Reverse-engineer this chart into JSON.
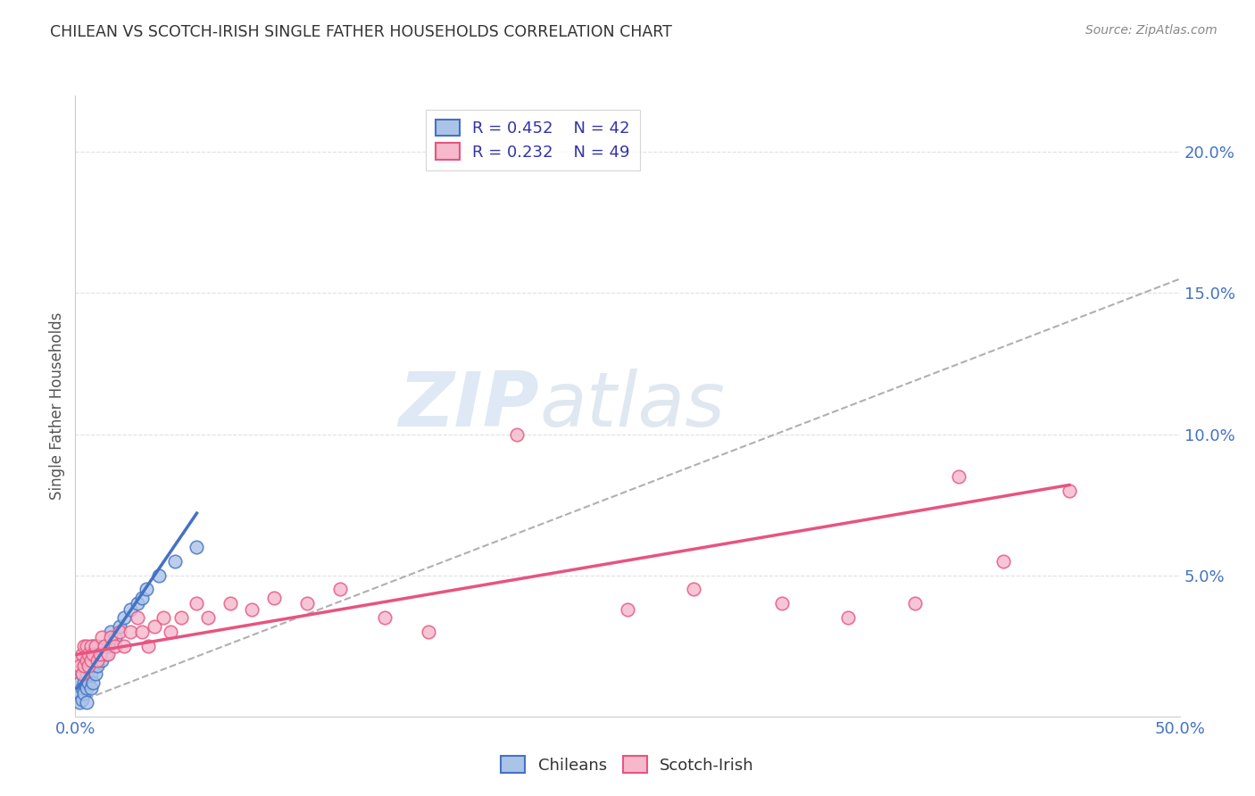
{
  "title": "CHILEAN VS SCOTCH-IRISH SINGLE FATHER HOUSEHOLDS CORRELATION CHART",
  "source": "Source: ZipAtlas.com",
  "ylabel": "Single Father Households",
  "ytick_labels": [
    "5.0%",
    "10.0%",
    "15.0%",
    "20.0%"
  ],
  "ytick_values": [
    0.05,
    0.1,
    0.15,
    0.2
  ],
  "xlim": [
    0.0,
    0.5
  ],
  "ylim": [
    0.0,
    0.22
  ],
  "legend_r1": "R = 0.452",
  "legend_n1": "N = 42",
  "legend_r2": "R = 0.232",
  "legend_n2": "N = 49",
  "color_chilean_face": "#aac4e8",
  "color_scotch_face": "#f5b8cc",
  "color_line_chilean": "#4472c4",
  "color_line_scotch": "#e75480",
  "color_trendline_dashed": "#b0b0b0",
  "watermark_zip": "ZIP",
  "watermark_atlas": "atlas",
  "chilean_x": [
    0.001,
    0.002,
    0.002,
    0.003,
    0.003,
    0.003,
    0.004,
    0.004,
    0.004,
    0.005,
    0.005,
    0.005,
    0.005,
    0.006,
    0.006,
    0.006,
    0.007,
    0.007,
    0.007,
    0.008,
    0.008,
    0.008,
    0.009,
    0.009,
    0.01,
    0.01,
    0.011,
    0.012,
    0.013,
    0.014,
    0.015,
    0.016,
    0.018,
    0.02,
    0.022,
    0.025,
    0.028,
    0.03,
    0.032,
    0.038,
    0.045,
    0.055
  ],
  "chilean_y": [
    0.008,
    0.005,
    0.012,
    0.006,
    0.01,
    0.015,
    0.008,
    0.012,
    0.018,
    0.01,
    0.015,
    0.02,
    0.005,
    0.012,
    0.018,
    0.022,
    0.01,
    0.015,
    0.02,
    0.012,
    0.018,
    0.025,
    0.015,
    0.02,
    0.018,
    0.025,
    0.022,
    0.02,
    0.025,
    0.022,
    0.025,
    0.03,
    0.028,
    0.032,
    0.035,
    0.038,
    0.04,
    0.042,
    0.045,
    0.05,
    0.055,
    0.06
  ],
  "scotch_x": [
    0.001,
    0.002,
    0.003,
    0.003,
    0.004,
    0.004,
    0.005,
    0.005,
    0.006,
    0.006,
    0.007,
    0.007,
    0.008,
    0.009,
    0.01,
    0.011,
    0.012,
    0.013,
    0.015,
    0.016,
    0.018,
    0.02,
    0.022,
    0.025,
    0.028,
    0.03,
    0.033,
    0.036,
    0.04,
    0.043,
    0.048,
    0.055,
    0.06,
    0.07,
    0.08,
    0.09,
    0.105,
    0.12,
    0.14,
    0.16,
    0.2,
    0.25,
    0.28,
    0.32,
    0.35,
    0.38,
    0.4,
    0.42,
    0.45
  ],
  "scotch_y": [
    0.02,
    0.018,
    0.022,
    0.015,
    0.025,
    0.018,
    0.02,
    0.025,
    0.018,
    0.022,
    0.025,
    0.02,
    0.022,
    0.025,
    0.02,
    0.022,
    0.028,
    0.025,
    0.022,
    0.028,
    0.025,
    0.03,
    0.025,
    0.03,
    0.035,
    0.03,
    0.025,
    0.032,
    0.035,
    0.03,
    0.035,
    0.04,
    0.035,
    0.04,
    0.038,
    0.042,
    0.04,
    0.045,
    0.035,
    0.03,
    0.1,
    0.038,
    0.045,
    0.04,
    0.035,
    0.04,
    0.085,
    0.055,
    0.08
  ],
  "background_color": "#ffffff",
  "grid_color": "#e0e0e0",
  "chi_trend_x": [
    0.001,
    0.055
  ],
  "chi_trend_y_start": 0.01,
  "chi_trend_y_end": 0.072,
  "sco_trend_x": [
    0.001,
    0.45
  ],
  "sco_trend_y_start": 0.022,
  "sco_trend_y_end": 0.082,
  "dash_trend_x": [
    0.001,
    0.5
  ],
  "dash_trend_y_start": 0.005,
  "dash_trend_y_end": 0.155
}
